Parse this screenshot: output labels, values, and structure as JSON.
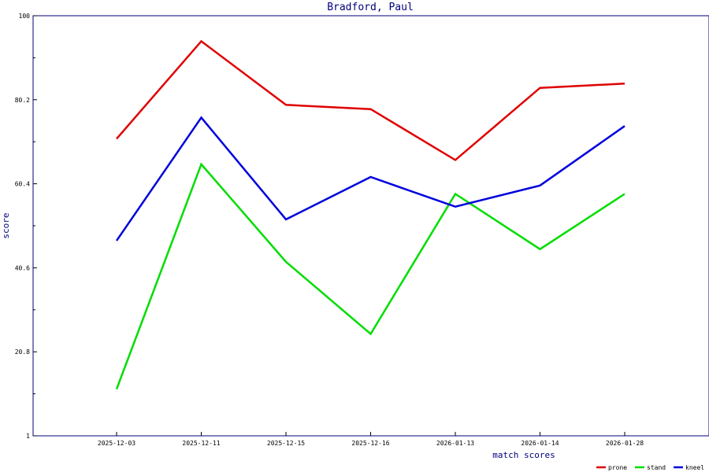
{
  "chart_data": {
    "type": "line",
    "title": "Bradford, Paul",
    "xlabel": "match scores",
    "ylabel": "score",
    "categories": [
      "2025-12-03",
      "2025-12-11",
      "2025-12-15",
      "2025-12-16",
      "2026-01-13",
      "2026-01-14",
      "2026-01-28"
    ],
    "ylim": [
      1,
      100
    ],
    "yticks": [
      "1",
      "20.8",
      "40.6",
      "60.4",
      "80.2",
      "100"
    ],
    "grid": false,
    "legend_position": "bottom-right",
    "series": [
      {
        "name": "prone",
        "color": "#e00000",
        "values": [
          71,
          94,
          79,
          78,
          66,
          83,
          84
        ]
      },
      {
        "name": "stand",
        "color": "#00dd00",
        "values": [
          12,
          65,
          42,
          25,
          58,
          45,
          58
        ]
      },
      {
        "name": "kneel",
        "color": "#0000dd",
        "values": [
          47,
          76,
          52,
          62,
          55,
          60,
          74
        ]
      }
    ]
  }
}
